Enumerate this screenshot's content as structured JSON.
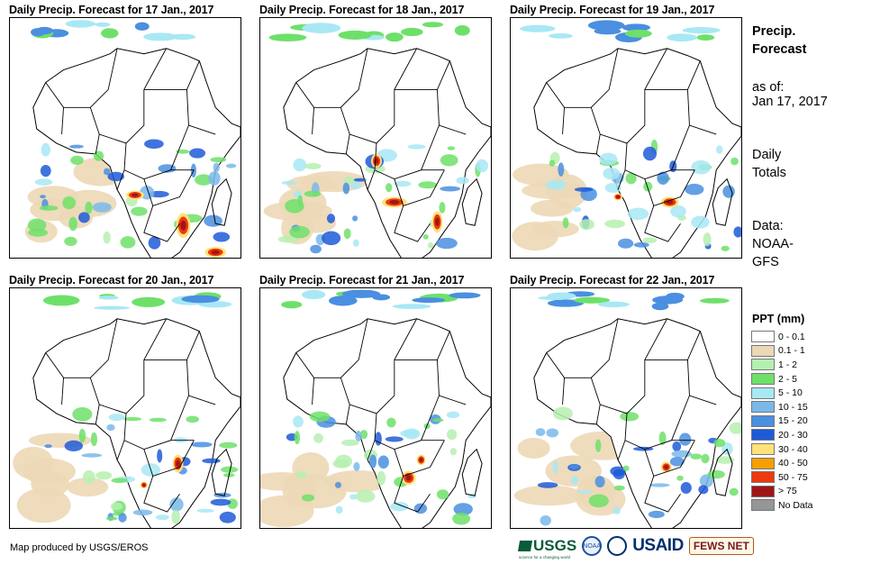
{
  "panels": [
    {
      "title": "Daily Precip. Forecast for 17 Jan., 2017"
    },
    {
      "title": "Daily Precip. Forecast for 18 Jan., 2017"
    },
    {
      "title": "Daily Precip. Forecast for 19 Jan., 2017"
    },
    {
      "title": "Daily Precip. Forecast for 20 Jan., 2017"
    },
    {
      "title": "Daily Precip. Forecast for 21 Jan., 2017"
    },
    {
      "title": "Daily Precip. Forecast for 22 Jan., 2017"
    }
  ],
  "side": {
    "title": "Precip. Forecast",
    "as_of_label": "as of:",
    "as_of_date": "Jan 17, 2017",
    "totals": "Daily Totals",
    "data_label": "Data:",
    "data_source": "NOAA-GFS"
  },
  "legend": {
    "title": "PPT (mm)",
    "items": [
      {
        "label": "0 - 0.1",
        "color": "#ffffff"
      },
      {
        "label": "0.1 - 1",
        "color": "#ecd8b6"
      },
      {
        "label": "1 - 2",
        "color": "#b6f0b0"
      },
      {
        "label": "2 - 5",
        "color": "#6ee06a"
      },
      {
        "label": "5 - 10",
        "color": "#a8e8f4"
      },
      {
        "label": "10 - 15",
        "color": "#7ab8ea"
      },
      {
        "label": "15 - 20",
        "color": "#4a8fe0"
      },
      {
        "label": "20 - 30",
        "color": "#1e5ad8"
      },
      {
        "label": "30 - 40",
        "color": "#ffe27a"
      },
      {
        "label": "40 - 50",
        "color": "#f5a000"
      },
      {
        "label": "50 - 75",
        "color": "#ee3a10"
      },
      {
        "label": "> 75",
        "color": "#a01616"
      },
      {
        "label": "No Data",
        "color": "#969696"
      }
    ]
  },
  "footer": {
    "credit": "Map produced by USGS/EROS",
    "logos": {
      "usgs": "USGS",
      "usgs_tagline": "science for a changing world",
      "noaa": "NOAA",
      "usaid": "USAID",
      "fews": "FEWS NET"
    }
  }
}
